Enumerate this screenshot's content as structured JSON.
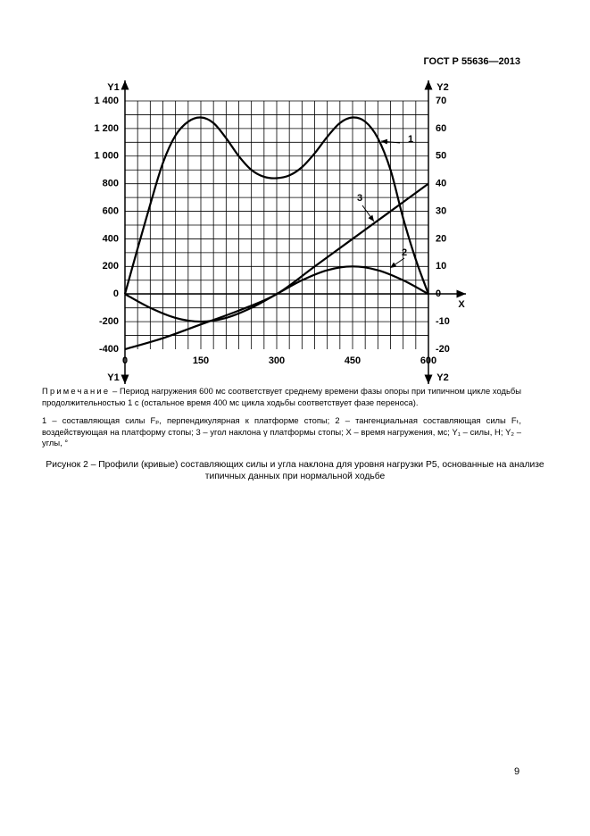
{
  "header": {
    "title": "ГОСТ Р 55636—2013"
  },
  "chart_data": {
    "type": "line",
    "y_label": "Y1",
    "y2_label": "Y2",
    "x_label": "X",
    "xlim": [
      0,
      600
    ],
    "xticks": [
      0,
      150,
      300,
      450,
      600
    ],
    "ylim": [
      -400,
      1400
    ],
    "yticks": [
      -400,
      -200,
      0,
      200,
      400,
      600,
      800,
      {
        "value": 1000,
        "label": "1 000"
      },
      {
        "value": 1200,
        "label": "1 200"
      },
      {
        "value": 1400,
        "label": "1 400"
      }
    ],
    "y2lim": [
      -20,
      70
    ],
    "y2ticks": [
      -20,
      -10,
      0,
      10,
      20,
      30,
      40,
      50,
      60,
      70
    ],
    "xgrid": [
      25,
      50,
      75,
      100,
      125,
      150,
      175,
      200,
      225,
      250,
      275,
      300,
      325,
      350,
      375,
      400,
      425,
      450,
      475,
      500,
      525,
      550,
      575,
      600
    ],
    "ygrid": [
      -300,
      -200,
      -100,
      0,
      100,
      200,
      300,
      400,
      500,
      600,
      700,
      800,
      900,
      1000,
      1100,
      1200,
      1300,
      1400
    ],
    "grid": true,
    "series": [
      {
        "name": "1",
        "color": "#000000",
        "x": [
          0,
          25,
          50,
          75,
          100,
          125,
          150,
          175,
          200,
          225,
          250,
          275,
          300,
          325,
          350,
          375,
          400,
          425,
          450,
          475,
          500,
          525,
          550,
          575,
          600
        ],
        "values": [
          0,
          330,
          650,
          950,
          1150,
          1250,
          1280,
          1240,
          1130,
          1000,
          900,
          850,
          840,
          860,
          920,
          1020,
          1140,
          1240,
          1280,
          1250,
          1130,
          900,
          550,
          250,
          0
        ]
      },
      {
        "name": "2",
        "color": "#000000",
        "x": [
          0,
          50,
          100,
          150,
          200,
          250,
          300,
          350,
          400,
          450,
          500,
          550,
          600
        ],
        "values": [
          0,
          -100,
          -173,
          -200,
          -173,
          -100,
          0,
          100,
          173,
          200,
          173,
          100,
          0
        ]
      },
      {
        "name": "3",
        "color": "#000000",
        "axis": "y2",
        "x": [
          0,
          75,
          150,
          225,
          300,
          375,
          450,
          525,
          600
        ],
        "values": [
          -20,
          -16,
          -11,
          -6,
          0,
          10,
          20,
          30,
          40
        ]
      }
    ]
  },
  "note": {
    "label": "Примечание",
    "text": "– Период нагружения 600 мс соответствует среднему времени фазы опоры при типичном цикле ходьбы продолжительностью 1 с (остальное время 400 мс цикла ходьбы соответствует фазе переноса)."
  },
  "legend_text": "1 – составляющая силы Fₚ, перпендикулярная к платформе стопы; 2 – тангенциальная составляющая силы Fₜ, воздействующая на платформу стопы; 3 – угол наклона γ платформы стопы; X – время нагружения, мс; Y₁ – силы, Н; Y₂ – углы, °",
  "caption": "Рисунок 2 – Профили (кривые) составляющих силы и угла наклона для уровня нагрузки P5, основанные на анализе типичных данных при нормальной ходьбе",
  "page_number": "9"
}
